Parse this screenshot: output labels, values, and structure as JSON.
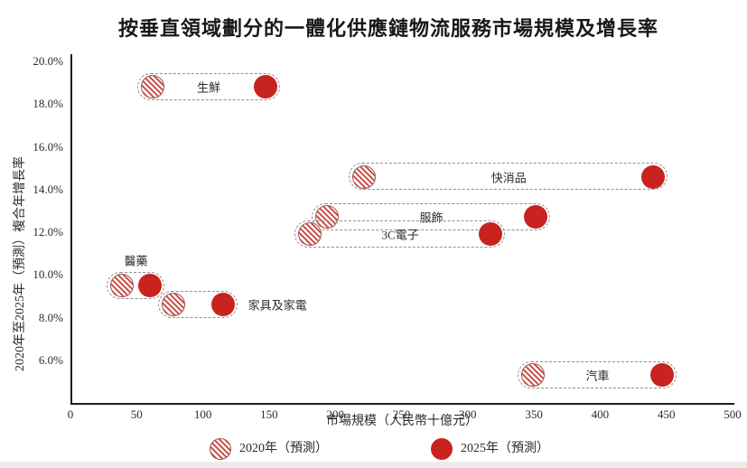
{
  "title": "按垂直領域劃分的一體化供應鏈物流服務市場規模及增長率",
  "colors": {
    "point_solid": "#c8231f",
    "hatch_stripe": "#c4453f",
    "hatch_fill": "#fdf4f2",
    "hatch_border": "#9e5a50",
    "capsule_border": "#8f8f8f",
    "axis_line": "#1c1c1c"
  },
  "chart_data": {
    "type": "scatter",
    "title": "按垂直領域劃分的一體化供應鏈物流服務市場規模及增長率",
    "xlabel": "市場規模（人民幣十億元）",
    "ylabel": "2020年至2025年（預測）複合年增長率",
    "xlim": [
      0,
      500
    ],
    "ylim_display": [
      6,
      20
    ],
    "ylim_axis": [
      4,
      20
    ],
    "grid": false,
    "x_ticks": [
      {
        "value": 0,
        "label": "0"
      },
      {
        "value": 50,
        "label": "50"
      },
      {
        "value": 100,
        "label": "100"
      },
      {
        "value": 150,
        "label": "150"
      },
      {
        "value": 200,
        "label": "200"
      },
      {
        "value": 250,
        "label": "250"
      },
      {
        "value": 300,
        "label": "300"
      },
      {
        "value": 350,
        "label": "350"
      },
      {
        "value": 400,
        "label": "400"
      },
      {
        "value": 450,
        "label": "450"
      },
      {
        "value": 500,
        "label": "500"
      }
    ],
    "y_ticks": [
      {
        "value": 6,
        "label": "6.0%"
      },
      {
        "value": 8,
        "label": "8.0%"
      },
      {
        "value": 10,
        "label": "10.0%"
      },
      {
        "value": 12,
        "label": "12.0%"
      },
      {
        "value": 14,
        "label": "14.0%"
      },
      {
        "value": 16,
        "label": "16.0%"
      },
      {
        "value": 18,
        "label": "18.0%"
      },
      {
        "value": 20,
        "label": "20.0%"
      }
    ],
    "series": [
      {
        "name": "2020年（預測）",
        "style": "hatched"
      },
      {
        "name": "2025年（預測）",
        "style": "solid"
      }
    ],
    "groups": [
      {
        "id": "fresh",
        "label": "生鮮",
        "cagr_pct": 18.8,
        "value_2020": 62,
        "value_2025": 147,
        "label_pos": "inside"
      },
      {
        "id": "fmcg",
        "label": "快消品",
        "cagr_pct": 14.6,
        "value_2020": 222,
        "value_2025": 440,
        "label_pos": "inside"
      },
      {
        "id": "apparel",
        "label": "服飾",
        "cagr_pct": 12.7,
        "value_2020": 194,
        "value_2025": 351,
        "label_pos": "inside"
      },
      {
        "id": "electronics-3c",
        "label": "3C電子",
        "cagr_pct": 11.9,
        "value_2020": 181,
        "value_2025": 317,
        "label_pos": "inside"
      },
      {
        "id": "pharma",
        "label": "醫藥",
        "cagr_pct": 9.5,
        "value_2020": 39,
        "value_2025": 60,
        "label_pos": "above"
      },
      {
        "id": "furniture-appliances",
        "label": "家具及家電",
        "cagr_pct": 8.6,
        "value_2020": 78,
        "value_2025": 115,
        "label_pos": "right"
      },
      {
        "id": "auto",
        "label": "汽車",
        "cagr_pct": 5.3,
        "value_2020": 349,
        "value_2025": 447,
        "label_pos": "inside"
      }
    ],
    "legend": [
      {
        "label": "2020年（預測）",
        "style": "hatched"
      },
      {
        "label": "2025年（預測）",
        "style": "solid"
      }
    ],
    "legend_position": "bottom"
  }
}
